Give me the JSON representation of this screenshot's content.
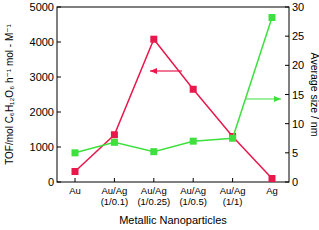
{
  "chart_data": {
    "type": "line",
    "categories": [
      "Au",
      "Au/Ag (1/0.1)",
      "Au/Ag (1/0.25)",
      "Au/Ag (1/0.5)",
      "Au/Ag (1/1)",
      "Ag"
    ],
    "x_label": "Metallic Nanoparticles",
    "y_label": "TOF/mol C₆H₁₂O₆ h⁻¹ mol - M⁻¹",
    "y2_label": "Average size / nm",
    "ylim": [
      0,
      5000
    ],
    "yticks": [
      0,
      1000,
      2000,
      3000,
      4000,
      5000
    ],
    "y2lim": [
      0,
      30
    ],
    "y2ticks": [
      0,
      5,
      10,
      15,
      20,
      25,
      30
    ],
    "series": [
      {
        "name": "TOF",
        "color": "#e8184c",
        "marker": "square",
        "values": [
          300,
          1350,
          4080,
          2650,
          1300,
          100
        ]
      },
      {
        "name": "Average size",
        "color": "#3ee03e",
        "marker": "square",
        "axis": "y2",
        "values": [
          5.0,
          6.8,
          5.2,
          7.0,
          7.5,
          28.2
        ]
      }
    ]
  }
}
